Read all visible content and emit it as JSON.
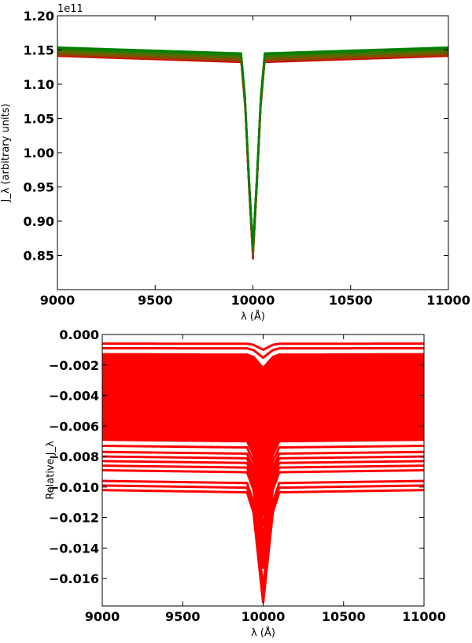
{
  "chart_data": [
    {
      "type": "line",
      "offset_text": "1e11",
      "xlabel": "λ (Å)",
      "ylabel": "J_λ (arbitrary units)",
      "xlim": [
        9000,
        11000
      ],
      "ylim": [
        0.8,
        1.2
      ],
      "y_scale_factor": 100000000000.0,
      "xticks": [
        9000,
        9500,
        10000,
        10500,
        11000
      ],
      "xtick_labels": [
        "9000",
        "9500",
        "10000",
        "10500",
        "11000"
      ],
      "yticks": [
        0.85,
        0.9,
        0.95,
        1.0,
        1.05,
        1.1,
        1.15,
        1.2
      ],
      "ytick_labels": [
        "0.85",
        "0.90",
        "0.95",
        "1.00",
        "1.05",
        "1.10",
        "1.15",
        "1.20"
      ],
      "series_band": {
        "colors": [
          "#cc0000",
          "#b03000",
          "#8a4a00",
          "#5a6a00",
          "#2a7a00",
          "#008000"
        ],
        "continuum_values": [
          1.141,
          1.143,
          1.145,
          1.148,
          1.151,
          1.154
        ],
        "line_center": 10000,
        "line_minimum": [
          0.844,
          0.848,
          0.852,
          0.856,
          0.86,
          0.865
        ],
        "profile_x": [
          9000,
          9940,
          9960,
          9980,
          10000,
          10020,
          10040,
          10060,
          11000
        ],
        "profile_depth": [
          0,
          0.03,
          0.25,
          0.65,
          1.0,
          0.65,
          0.25,
          0.03,
          0
        ]
      }
    },
    {
      "type": "line",
      "xlabel": "λ (Å)",
      "ylabel": "Relative J_λ",
      "xlim": [
        9000,
        11000
      ],
      "ylim": [
        -0.0178,
        0.0
      ],
      "xticks": [
        9000,
        9500,
        10000,
        10500,
        11000
      ],
      "xtick_labels": [
        "9000",
        "9500",
        "10000",
        "10500",
        "11000"
      ],
      "yticks": [
        0.0,
        -0.002,
        -0.004,
        -0.006,
        -0.008,
        -0.01,
        -0.012,
        -0.014,
        -0.016
      ],
      "ytick_labels": [
        "0.000",
        "−0.002",
        "−0.004",
        "−0.006",
        "−0.008",
        "−0.010",
        "−0.012",
        "−0.014",
        "−0.016"
      ],
      "series_band": {
        "color": "#ff0000",
        "continuum_values": [
          -0.0006,
          -0.0009,
          -0.0013,
          -0.0017,
          -0.0021,
          -0.0025,
          -0.0029,
          -0.0033,
          -0.0037,
          -0.0041,
          -0.0045,
          -0.0049,
          -0.0053,
          -0.0057,
          -0.0061,
          -0.0065,
          -0.0069,
          -0.0073,
          -0.0077,
          -0.008,
          -0.0083,
          -0.0086,
          -0.0089,
          -0.0096,
          -0.0099,
          -0.0102
        ],
        "line_center": 10000,
        "line_minimum_deepest": -0.0176,
        "line_minimum_shallowest": -0.001,
        "profile_x": [
          9000,
          9900,
          9940,
          9970,
          10000,
          10030,
          10060,
          10100,
          11000
        ],
        "profile_depth": [
          0,
          0.02,
          0.2,
          0.6,
          1.0,
          0.6,
          0.2,
          0.02,
          0
        ]
      }
    }
  ]
}
